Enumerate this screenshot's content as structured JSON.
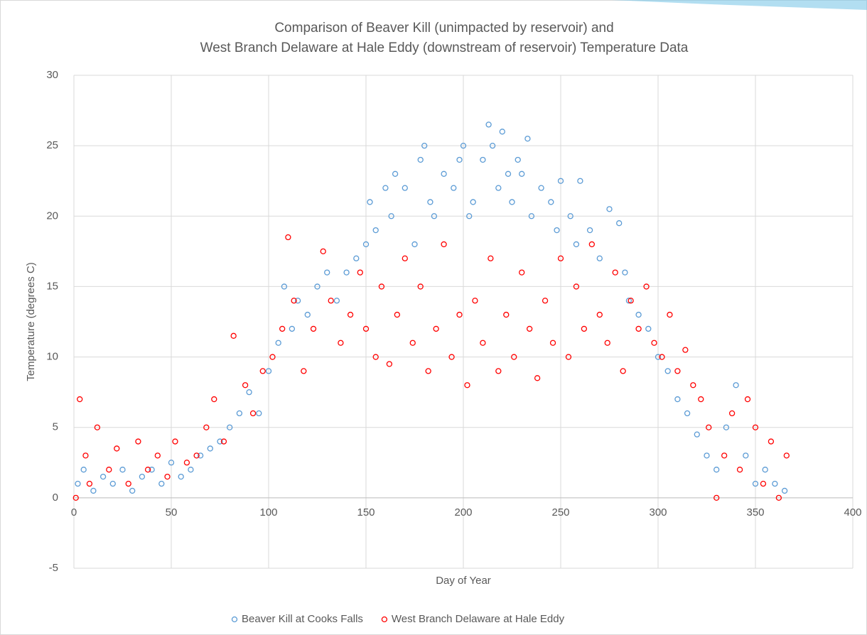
{
  "chart_data": {
    "type": "scatter",
    "title": [
      "Comparison of Beaver Kill (unimpacted by reservoir) and",
      "West Branch Delaware at Hale Eddy (downstream of reservoir) Temperature Data"
    ],
    "x_label": "Day of Year",
    "y_label": "Temperature  (degrees C)",
    "xlim": [
      0,
      400
    ],
    "xticks": [
      0,
      50,
      100,
      150,
      200,
      250,
      300,
      350,
      400
    ],
    "ylim": [
      -5,
      30
    ],
    "yticks": [
      -5,
      0,
      5,
      10,
      15,
      20,
      25,
      30
    ],
    "grid": true,
    "legend": "bottom",
    "series": [
      {
        "name": "Beaver Kill at Cooks Falls",
        "color": "#5b9bd5",
        "x": [
          2,
          5,
          10,
          15,
          20,
          25,
          30,
          35,
          40,
          45,
          50,
          55,
          60,
          65,
          70,
          75,
          80,
          85,
          90,
          95,
          100,
          105,
          108,
          112,
          115,
          120,
          125,
          130,
          135,
          140,
          145,
          150,
          152,
          155,
          160,
          163,
          165,
          170,
          175,
          178,
          180,
          183,
          185,
          190,
          195,
          198,
          200,
          203,
          205,
          210,
          213,
          215,
          218,
          220,
          223,
          225,
          228,
          230,
          233,
          235,
          240,
          245,
          248,
          250,
          255,
          258,
          260,
          265,
          270,
          275,
          280,
          283,
          285,
          290,
          295,
          300,
          305,
          310,
          315,
          320,
          325,
          330,
          335,
          340,
          345,
          350,
          355,
          360,
          365
        ],
        "values": [
          1,
          2,
          0.5,
          1.5,
          1,
          2,
          0.5,
          1.5,
          2,
          1,
          2.5,
          1.5,
          2,
          3,
          3.5,
          4,
          5,
          6,
          7.5,
          6,
          9,
          11,
          15,
          12,
          14,
          13,
          15,
          16,
          14,
          16,
          17,
          18,
          21,
          19,
          22,
          20,
          23,
          22,
          18,
          24,
          25,
          21,
          20,
          23,
          22,
          24,
          25,
          20,
          21,
          24,
          26.5,
          25,
          22,
          26,
          23,
          21,
          24,
          23,
          25.5,
          20,
          22,
          21,
          19,
          22.5,
          20,
          18,
          22.5,
          19,
          17,
          20.5,
          19.5,
          16,
          14,
          13,
          12,
          10,
          9,
          7,
          6,
          4.5,
          3,
          2,
          5,
          8,
          3,
          1,
          2,
          1,
          0.5
        ]
      },
      {
        "name": "West Branch Delaware at Hale Eddy",
        "color": "#ff0000",
        "x": [
          1,
          3,
          6,
          8,
          12,
          18,
          22,
          28,
          33,
          38,
          43,
          48,
          52,
          58,
          63,
          68,
          72,
          77,
          82,
          88,
          92,
          97,
          102,
          107,
          110,
          113,
          118,
          123,
          128,
          132,
          137,
          142,
          147,
          150,
          155,
          158,
          162,
          166,
          170,
          174,
          178,
          182,
          186,
          190,
          194,
          198,
          202,
          206,
          210,
          214,
          218,
          222,
          226,
          230,
          234,
          238,
          242,
          246,
          250,
          254,
          258,
          262,
          266,
          270,
          274,
          278,
          282,
          286,
          290,
          294,
          298,
          302,
          306,
          310,
          314,
          318,
          322,
          326,
          330,
          334,
          338,
          342,
          346,
          350,
          354,
          358,
          362,
          366
        ],
        "values": [
          0,
          7,
          3,
          1,
          5,
          2,
          3.5,
          1,
          4,
          2,
          3,
          1.5,
          4,
          2.5,
          3,
          5,
          7,
          4,
          11.5,
          8,
          6,
          9,
          10,
          12,
          18.5,
          14,
          9,
          12,
          17.5,
          14,
          11,
          13,
          16,
          12,
          10,
          15,
          9.5,
          13,
          17,
          11,
          15,
          9,
          12,
          18,
          10,
          13,
          8,
          14,
          11,
          17,
          9,
          13,
          10,
          16,
          12,
          8.5,
          14,
          11,
          17,
          10,
          15,
          12,
          18,
          13,
          11,
          16,
          9,
          14,
          12,
          15,
          11,
          10,
          13,
          9,
          10.5,
          8,
          7,
          5,
          0,
          3,
          6,
          2,
          7,
          5,
          1,
          4,
          0,
          3
        ]
      }
    ]
  }
}
